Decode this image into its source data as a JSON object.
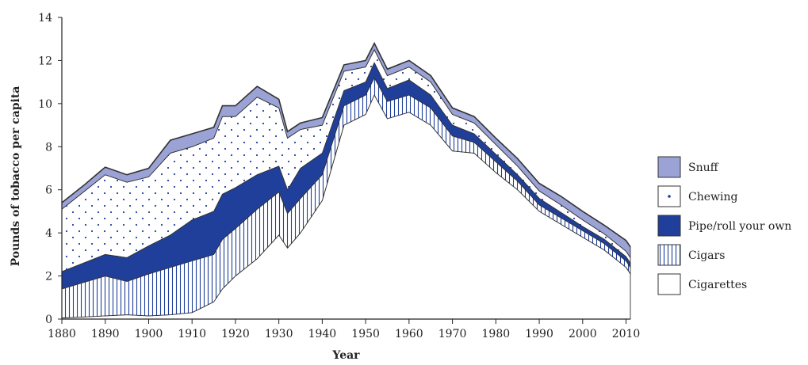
{
  "chart_data": {
    "type": "area",
    "stacked": true,
    "xlabel": "Year",
    "ylabel": "Pounds of tobacco per capita",
    "xlim": [
      1880,
      2011
    ],
    "ylim": [
      0,
      14
    ],
    "x_ticks": [
      1880,
      1890,
      1900,
      1910,
      1920,
      1930,
      1940,
      1950,
      1960,
      1970,
      1980,
      1990,
      2000,
      2010
    ],
    "y_ticks": [
      0,
      2,
      4,
      6,
      8,
      10,
      12,
      14
    ],
    "legend_position": "right",
    "x": [
      1880,
      1885,
      1890,
      1895,
      1900,
      1905,
      1910,
      1915,
      1917,
      1920,
      1925,
      1930,
      1932,
      1935,
      1940,
      1945,
      1950,
      1952,
      1955,
      1960,
      1965,
      1970,
      1975,
      1980,
      1985,
      1990,
      1995,
      2000,
      2005,
      2010,
      2011
    ],
    "series": [
      {
        "name": "Cigarettes",
        "pattern": "blank",
        "color": "#ffffff",
        "values": [
          0.05,
          0.1,
          0.15,
          0.2,
          0.15,
          0.2,
          0.3,
          0.8,
          1.4,
          2.0,
          2.8,
          3.9,
          3.3,
          4.0,
          5.5,
          9.0,
          9.5,
          10.4,
          9.3,
          9.6,
          9.0,
          7.8,
          7.7,
          6.8,
          6.0,
          5.0,
          4.4,
          3.8,
          3.2,
          2.4,
          2.1
        ]
      },
      {
        "name": "Cigars",
        "pattern": "vertical-lines",
        "color": "#1f3f9a",
        "values": [
          1.35,
          1.6,
          1.85,
          1.55,
          1.95,
          2.2,
          2.4,
          2.2,
          2.3,
          2.2,
          2.3,
          2.0,
          1.6,
          1.6,
          1.2,
          0.9,
          0.9,
          0.8,
          0.8,
          0.8,
          0.8,
          0.7,
          0.5,
          0.5,
          0.4,
          0.3,
          0.3,
          0.3,
          0.3,
          0.3,
          0.3
        ]
      },
      {
        "name": "Pipe/roll your own",
        "pattern": "solid",
        "color": "#1f3f9a",
        "values": [
          0.8,
          0.9,
          1.0,
          1.1,
          1.3,
          1.5,
          1.9,
          2.0,
          2.1,
          1.9,
          1.6,
          1.2,
          1.1,
          1.4,
          1.0,
          0.7,
          0.6,
          0.7,
          0.6,
          0.7,
          0.6,
          0.5,
          0.4,
          0.35,
          0.3,
          0.3,
          0.25,
          0.2,
          0.2,
          0.2,
          0.2
        ]
      },
      {
        "name": "Chewing",
        "pattern": "dots",
        "color": "#1f3f9a",
        "values": [
          2.9,
          3.3,
          3.7,
          3.5,
          3.2,
          3.8,
          3.4,
          3.4,
          3.6,
          3.3,
          3.6,
          2.7,
          2.4,
          1.8,
          1.3,
          0.9,
          0.7,
          0.6,
          0.6,
          0.6,
          0.6,
          0.5,
          0.5,
          0.45,
          0.4,
          0.35,
          0.35,
          0.3,
          0.25,
          0.25,
          0.25
        ]
      },
      {
        "name": "Snuff",
        "pattern": "solid",
        "color": "#9ba3d6",
        "values": [
          0.3,
          0.3,
          0.35,
          0.35,
          0.4,
          0.6,
          0.6,
          0.5,
          0.5,
          0.5,
          0.5,
          0.4,
          0.3,
          0.3,
          0.35,
          0.3,
          0.3,
          0.3,
          0.3,
          0.3,
          0.3,
          0.3,
          0.3,
          0.3,
          0.35,
          0.35,
          0.4,
          0.4,
          0.4,
          0.5,
          0.5
        ]
      }
    ],
    "legend_order": [
      "Snuff",
      "Chewing",
      "Pipe/roll your own",
      "Cigars",
      "Cigarettes"
    ]
  }
}
